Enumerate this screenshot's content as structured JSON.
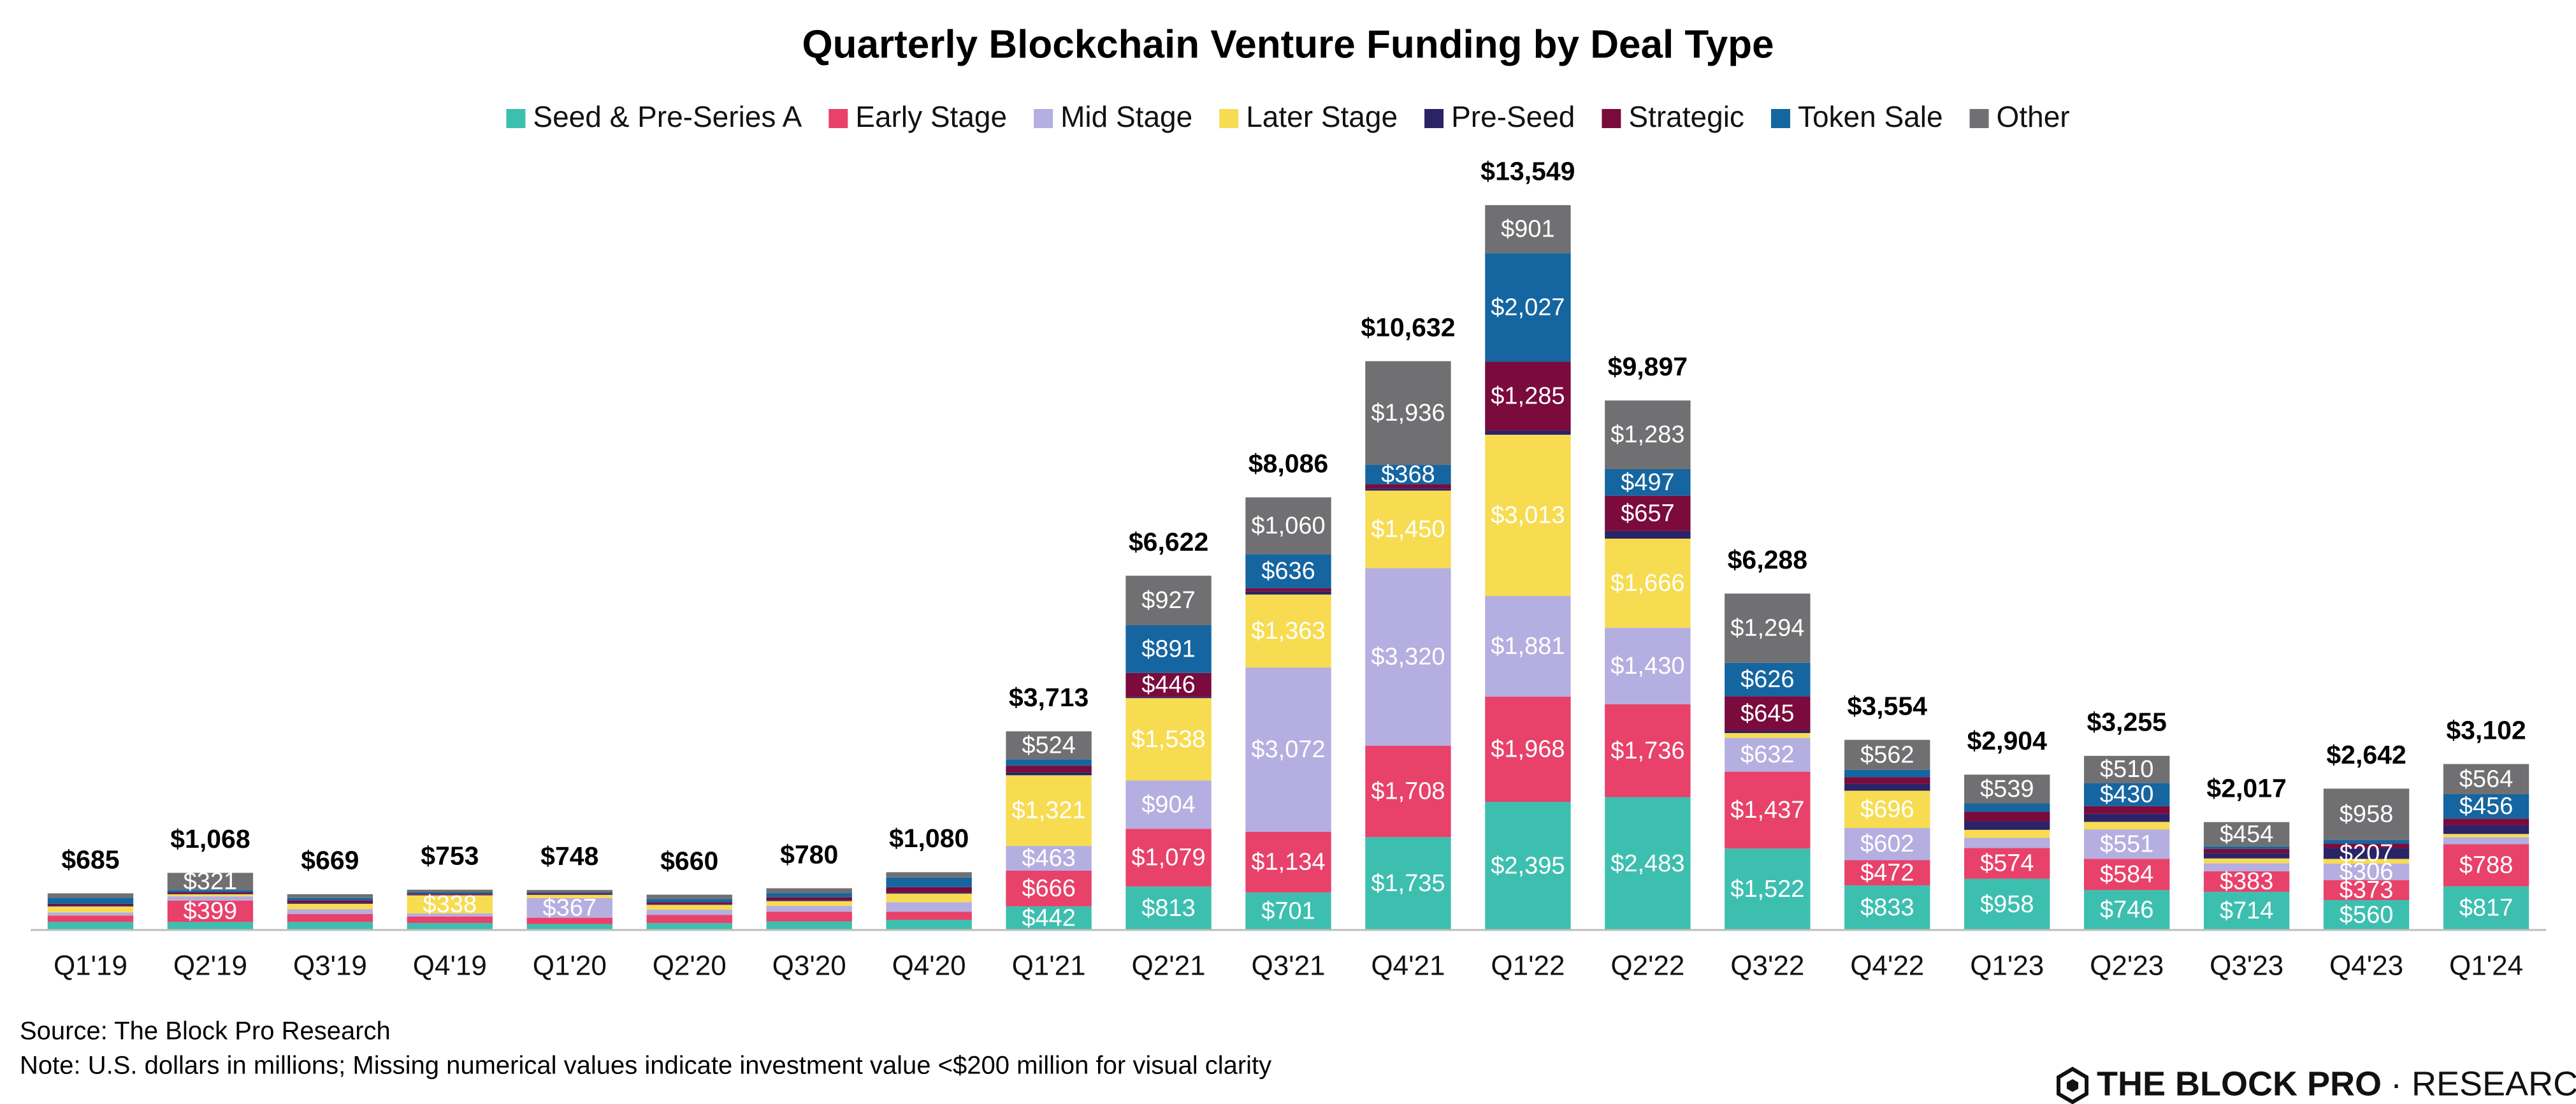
{
  "chart_data": {
    "type": "bar",
    "stacked": true,
    "title": "Quarterly Blockchain Venture Funding by Deal Type",
    "categories": [
      "Q1'19",
      "Q2'19",
      "Q3'19",
      "Q4'19",
      "Q1'20",
      "Q2'20",
      "Q3'20",
      "Q4'20",
      "Q1'21",
      "Q2'21",
      "Q3'21",
      "Q4'21",
      "Q1'22",
      "Q2'22",
      "Q3'22",
      "Q4'22",
      "Q1'23",
      "Q2'23",
      "Q3'23",
      "Q4'23",
      "Q1'24"
    ],
    "ylim": [
      0,
      15000
    ],
    "series": [
      {
        "name": "Seed & Pre-Series A",
        "color": "#3dbfb0",
        "values": [
          150,
          150,
          150,
          130,
          110,
          130,
          160,
          190,
          442,
          813,
          701,
          1735,
          2395,
          2483,
          1522,
          833,
          958,
          746,
          714,
          560,
          817
        ],
        "value_labels": [
          null,
          null,
          null,
          null,
          null,
          null,
          null,
          null,
          "$442",
          "$813",
          "$701",
          "$1,735",
          "$2,395",
          "$2,483",
          "$1,522",
          "$833",
          "$958",
          "$746",
          "$714",
          "$560",
          "$817"
        ]
      },
      {
        "name": "Early Stage",
        "color": "#e8416a",
        "values": [
          120,
          399,
          150,
          120,
          120,
          150,
          180,
          150,
          666,
          1079,
          1134,
          1708,
          1968,
          1736,
          1437,
          472,
          574,
          584,
          383,
          373,
          788
        ],
        "value_labels": [
          null,
          "$399",
          null,
          null,
          null,
          null,
          null,
          null,
          "$666",
          "$1,079",
          "$1,134",
          "$1,708",
          "$1,968",
          "$1,736",
          "$1,437",
          "$472",
          "$574",
          "$584",
          "$383",
          "$373",
          "$788"
        ]
      },
      {
        "name": "Mid Stage",
        "color": "#b5aee0",
        "values": [
          60,
          80,
          90,
          60,
          367,
          100,
          110,
          180,
          463,
          904,
          3072,
          3320,
          1881,
          1430,
          632,
          602,
          190,
          551,
          150,
          306,
          130
        ],
        "value_labels": [
          null,
          null,
          null,
          null,
          "$367",
          null,
          null,
          null,
          "$463",
          "$904",
          "$3,072",
          "$3,320",
          "$1,881",
          "$1,430",
          "$632",
          "$602",
          null,
          "$551",
          null,
          "$306",
          null
        ]
      },
      {
        "name": "Later Stage",
        "color": "#f7dc52",
        "values": [
          110,
          40,
          100,
          338,
          60,
          90,
          90,
          160,
          1321,
          1538,
          1363,
          1450,
          3013,
          1666,
          90,
          696,
          150,
          140,
          90,
          90,
          60
        ],
        "value_labels": [
          null,
          null,
          null,
          "$338",
          null,
          null,
          null,
          null,
          "$1,321",
          "$1,538",
          "$1,363",
          "$1,450",
          "$3,013",
          "$1,666",
          null,
          "$696",
          null,
          null,
          null,
          null,
          null
        ]
      },
      {
        "name": "Pre-Seed",
        "color": "#2a2466",
        "values": [
          20,
          10,
          15,
          10,
          10,
          10,
          10,
          20,
          60,
          24,
          60,
          40,
          79,
          145,
          42,
          130,
          160,
          150,
          100,
          207,
          160
        ],
        "value_labels": [
          null,
          null,
          null,
          null,
          null,
          null,
          null,
          null,
          null,
          null,
          null,
          null,
          null,
          null,
          null,
          null,
          null,
          null,
          null,
          "$207",
          null
        ]
      },
      {
        "name": "Strategic",
        "color": "#7a0b3c",
        "values": [
          30,
          28,
          44,
          20,
          21,
          40,
          60,
          100,
          120,
          446,
          60,
          75,
          1285,
          657,
          645,
          120,
          180,
          144,
          80,
          80,
          127
        ],
        "value_labels": [
          null,
          null,
          null,
          null,
          null,
          null,
          null,
          null,
          null,
          "$446",
          null,
          null,
          "$1,285",
          "$657",
          "$645",
          null,
          null,
          null,
          null,
          null,
          null
        ]
      },
      {
        "name": "Token Sale",
        "color": "#1565a0",
        "values": [
          110,
          40,
          50,
          25,
          20,
          60,
          80,
          180,
          117,
          891,
          636,
          368,
          2027,
          497,
          626,
          139,
          153,
          430,
          46,
          68,
          456
        ],
        "value_labels": [
          null,
          null,
          null,
          null,
          null,
          null,
          null,
          null,
          null,
          "$891",
          "$636",
          "$368",
          "$2,027",
          "$497",
          "$626",
          null,
          null,
          "$430",
          null,
          null,
          "$456"
        ]
      },
      {
        "name": "Other",
        "color": "#707073",
        "values": [
          85,
          321,
          70,
          50,
          40,
          80,
          90,
          100,
          524,
          927,
          1060,
          1936,
          901,
          1283,
          1294,
          562,
          539,
          510,
          454,
          958,
          564
        ],
        "value_labels": [
          null,
          "$321",
          null,
          null,
          null,
          null,
          null,
          null,
          "$524",
          "$927",
          "$1,060",
          "$1,936",
          "$901",
          "$1,283",
          "$1,294",
          "$562",
          "$539",
          "$510",
          "$454",
          "$958",
          "$564"
        ]
      }
    ],
    "totals": [
      685,
      1068,
      669,
      753,
      748,
      660,
      780,
      1080,
      3713,
      6622,
      8086,
      10632,
      13549,
      9897,
      6288,
      3554,
      2904,
      3255,
      2017,
      2642,
      3102
    ],
    "total_labels": [
      "$685",
      "$1,068",
      "$669",
      "$753",
      "$748",
      "$660",
      "$780",
      "$1,080",
      "$3,713",
      "$6,622",
      "$8,086",
      "$10,632",
      "$13,549",
      "$9,897",
      "$6,288",
      "$3,554",
      "$2,904",
      "$3,255",
      "$2,017",
      "$2,642",
      "$3,102"
    ],
    "legend": "top",
    "source": "Source: The Block Pro Research",
    "note": "Note: U.S. dollars in millions; Missing numerical values indicate investment value <$200 million for visual clarity",
    "logo_brand": "THE BLOCK PRO",
    "logo_suffix": "· RESEARCH"
  }
}
